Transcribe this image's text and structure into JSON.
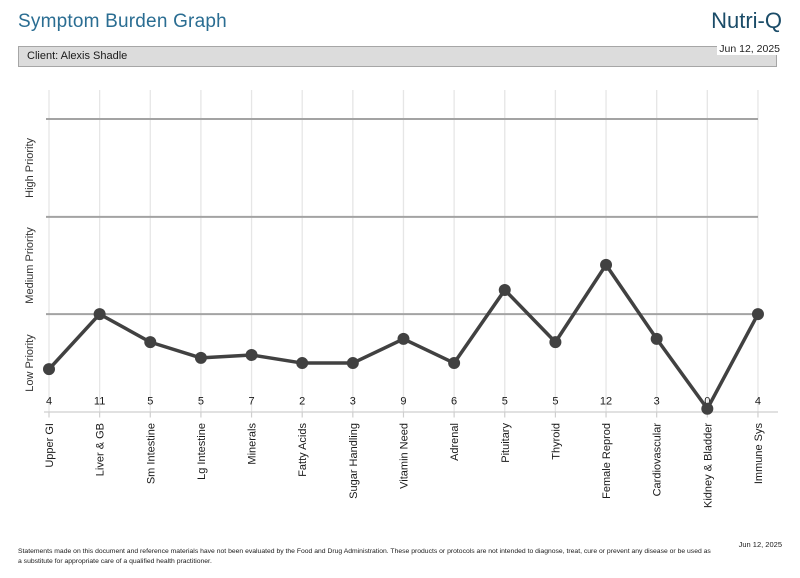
{
  "header": {
    "title": "Symptom Burden Graph",
    "brand": "Nutri-Q",
    "date": "Jun 12, 2025"
  },
  "client_bar": {
    "label": "Client: Alexis Shadle"
  },
  "chart_data": {
    "type": "line",
    "title": "Symptom Burden Graph",
    "categories": [
      "Upper GI",
      "Liver & GB",
      "Sm Intestine",
      "Lg Intestine",
      "Minerals",
      "Fatty Acids",
      "Sugar Handling",
      "Vitamin Need",
      "Adrenal",
      "Pituitary",
      "Thyroid",
      "Female Reprod",
      "Cardiovascular",
      "Kidney & Bladder",
      "Immune Sys"
    ],
    "values": [
      4,
      11,
      5,
      5,
      7,
      2,
      3,
      9,
      6,
      5,
      5,
      12,
      3,
      0,
      4
    ],
    "height_fractions": [
      0.133,
      0.304,
      0.217,
      0.168,
      0.177,
      0.152,
      0.152,
      0.227,
      0.152,
      0.379,
      0.217,
      0.457,
      0.227,
      0.01,
      0.304
    ],
    "bands": [
      {
        "label": "Low Priority",
        "from": 0,
        "to": 0.304
      },
      {
        "label": "Medium Priority",
        "from": 0.304,
        "to": 0.606
      },
      {
        "label": "High Priority",
        "from": 0.606,
        "to": 0.91
      }
    ],
    "ylabel": "",
    "xlabel": "",
    "grid": true,
    "legend_position": "none"
  },
  "footer": {
    "disclaimer": "Statements made on this document and reference materials have not been evaluated by the Food and Drug Administration. These products or protocols are not intended to diagnose, treat, cure or prevent any disease or be used as a substitute for appropriate care of a qualified health practitioner.",
    "date": "Jun 12, 2025"
  },
  "colors": {
    "title": "#2a6d92",
    "brand": "#1b4c68",
    "line": "#414141",
    "grid_major": "#a3a3a3",
    "grid_minor": "#e6e6e6",
    "axis": "#cfcfcf",
    "client_bar_bg": "#dcdcdc",
    "client_bar_border": "#a6a6a6",
    "text": "#1a1a1a",
    "band_label": "#333333"
  }
}
